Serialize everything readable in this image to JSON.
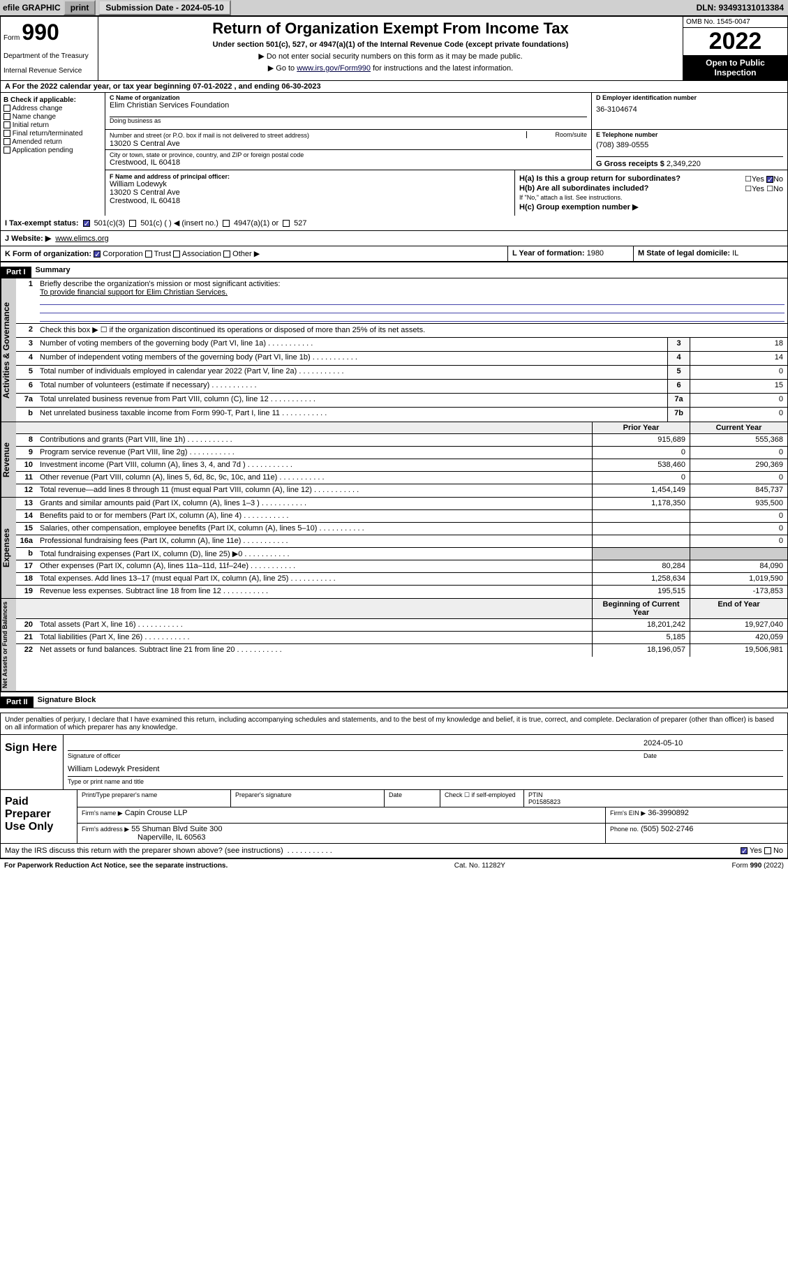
{
  "topbar": {
    "efile": "efile GRAPHIC",
    "print": "print",
    "sub_label": "Submission Date - 2024-05-10",
    "dln": "DLN: 93493131013384"
  },
  "header": {
    "form_word": "Form",
    "form_num": "990",
    "dept": "Department of the Treasury",
    "irs": "Internal Revenue Service",
    "title": "Return of Organization Exempt From Income Tax",
    "sub": "Under section 501(c), 527, or 4947(a)(1) of the Internal Revenue Code (except private foundations)",
    "note1": "▶ Do not enter social security numbers on this form as it may be made public.",
    "note2_pre": "▶ Go to ",
    "note2_link": "www.irs.gov/Form990",
    "note2_post": " for instructions and the latest information.",
    "omb": "OMB No. 1545-0047",
    "year": "2022",
    "open": "Open to Public Inspection"
  },
  "row_a": "A For the 2022 calendar year, or tax year beginning 07-01-2022   , and ending 06-30-2023",
  "b": {
    "title": "B Check if applicable:",
    "items": [
      "Address change",
      "Name change",
      "Initial return",
      "Final return/terminated",
      "Amended return",
      "Application pending"
    ]
  },
  "c": {
    "name_label": "C Name of organization",
    "name": "Elim Christian Services Foundation",
    "dba_label": "Doing business as",
    "addr_label": "Number and street (or P.O. box if mail is not delivered to street address)",
    "room_label": "Room/suite",
    "addr": "13020 S Central Ave",
    "city_label": "City or town, state or province, country, and ZIP or foreign postal code",
    "city": "Crestwood, IL  60418"
  },
  "d": {
    "label": "D Employer identification number",
    "val": "36-3104674"
  },
  "e": {
    "label": "E Telephone number",
    "val": "(708) 389-0555"
  },
  "g": {
    "label": "G Gross receipts $",
    "val": "2,349,220"
  },
  "f": {
    "label": "F Name and address of principal officer:",
    "name": "William Lodewyk",
    "addr": "13020 S Central Ave",
    "city": "Crestwood, IL  60418"
  },
  "h": {
    "a": "H(a)  Is this a group return for subordinates?",
    "a_ans": "No",
    "b": "H(b)  Are all subordinates included?",
    "b_note": "If \"No,\" attach a list. See instructions.",
    "c": "H(c)  Group exemption number ▶"
  },
  "i": {
    "label": "I  Tax-exempt status:",
    "c3": "501(c)(3)",
    "c": "501(c) (  ) ◀ (insert no.)",
    "a1": "4947(a)(1) or",
    "s527": "527"
  },
  "j": {
    "label": "J  Website: ▶",
    "val": "www.elimcs.org"
  },
  "k": {
    "label": "K Form of organization:",
    "corp": "Corporation",
    "trust": "Trust",
    "assoc": "Association",
    "other": "Other ▶",
    "l_label": "L Year of formation:",
    "l_val": "1980",
    "m_label": "M State of legal domicile:",
    "m_val": "IL"
  },
  "part1": {
    "hdr": "Part I",
    "title": "Summary"
  },
  "activities": {
    "label": "Activities & Governance",
    "l1": "Briefly describe the organization's mission or most significant activities:",
    "l1v": "To provide financial support for Elim Christian Services.",
    "l2": "Check this box ▶ ☐  if the organization discontinued its operations or disposed of more than 25% of its net assets.",
    "rows": [
      {
        "n": "3",
        "t": "Number of voting members of the governing body (Part VI, line 1a)",
        "box": "3",
        "v": "18"
      },
      {
        "n": "4",
        "t": "Number of independent voting members of the governing body (Part VI, line 1b)",
        "box": "4",
        "v": "14"
      },
      {
        "n": "5",
        "t": "Total number of individuals employed in calendar year 2022 (Part V, line 2a)",
        "box": "5",
        "v": "0"
      },
      {
        "n": "6",
        "t": "Total number of volunteers (estimate if necessary)",
        "box": "6",
        "v": "15"
      },
      {
        "n": "7a",
        "t": "Total unrelated business revenue from Part VIII, column (C), line 12",
        "box": "7a",
        "v": "0"
      },
      {
        "n": "b",
        "t": "Net unrelated business taxable income from Form 990-T, Part I, line 11",
        "box": "7b",
        "v": "0"
      }
    ]
  },
  "revenue": {
    "label": "Revenue",
    "h1": "Prior Year",
    "h2": "Current Year",
    "rows": [
      {
        "n": "8",
        "t": "Contributions and grants (Part VIII, line 1h)",
        "v1": "915,689",
        "v2": "555,368"
      },
      {
        "n": "9",
        "t": "Program service revenue (Part VIII, line 2g)",
        "v1": "0",
        "v2": "0"
      },
      {
        "n": "10",
        "t": "Investment income (Part VIII, column (A), lines 3, 4, and 7d )",
        "v1": "538,460",
        "v2": "290,369"
      },
      {
        "n": "11",
        "t": "Other revenue (Part VIII, column (A), lines 5, 6d, 8c, 9c, 10c, and 11e)",
        "v1": "0",
        "v2": "0"
      },
      {
        "n": "12",
        "t": "Total revenue—add lines 8 through 11 (must equal Part VIII, column (A), line 12)",
        "v1": "1,454,149",
        "v2": "845,737"
      }
    ]
  },
  "expenses": {
    "label": "Expenses",
    "rows": [
      {
        "n": "13",
        "t": "Grants and similar amounts paid (Part IX, column (A), lines 1–3 )",
        "v1": "1,178,350",
        "v2": "935,500"
      },
      {
        "n": "14",
        "t": "Benefits paid to or for members (Part IX, column (A), line 4)",
        "v1": "",
        "v2": "0"
      },
      {
        "n": "15",
        "t": "Salaries, other compensation, employee benefits (Part IX, column (A), lines 5–10)",
        "v1": "",
        "v2": "0"
      },
      {
        "n": "16a",
        "t": "Professional fundraising fees (Part IX, column (A), line 11e)",
        "v1": "",
        "v2": "0"
      },
      {
        "n": "b",
        "t": "Total fundraising expenses (Part IX, column (D), line 25) ▶0",
        "v1": "",
        "v2": "",
        "shade": true
      },
      {
        "n": "17",
        "t": "Other expenses (Part IX, column (A), lines 11a–11d, 11f–24e)",
        "v1": "80,284",
        "v2": "84,090"
      },
      {
        "n": "18",
        "t": "Total expenses. Add lines 13–17 (must equal Part IX, column (A), line 25)",
        "v1": "1,258,634",
        "v2": "1,019,590"
      },
      {
        "n": "19",
        "t": "Revenue less expenses. Subtract line 18 from line 12",
        "v1": "195,515",
        "v2": "-173,853"
      }
    ]
  },
  "net": {
    "label": "Net Assets or Fund Balances",
    "h1": "Beginning of Current Year",
    "h2": "End of Year",
    "rows": [
      {
        "n": "20",
        "t": "Total assets (Part X, line 16)",
        "v1": "18,201,242",
        "v2": "19,927,040"
      },
      {
        "n": "21",
        "t": "Total liabilities (Part X, line 26)",
        "v1": "5,185",
        "v2": "420,059"
      },
      {
        "n": "22",
        "t": "Net assets or fund balances. Subtract line 21 from line 20",
        "v1": "18,196,057",
        "v2": "19,506,981"
      }
    ]
  },
  "part2": {
    "hdr": "Part II",
    "title": "Signature Block"
  },
  "sig": {
    "decl": "Under penalties of perjury, I declare that I have examined this return, including accompanying schedules and statements, and to the best of my knowledge and belief, it is true, correct, and complete. Declaration of preparer (other than officer) is based on all information of which preparer has any knowledge.",
    "sign_here": "Sign Here",
    "sig_officer": "Signature of officer",
    "date_label": "Date",
    "date": "2024-05-10",
    "name": "William Lodewyk  President",
    "name_label": "Type or print name and title"
  },
  "paid": {
    "label": "Paid Preparer Use Only",
    "h_name": "Print/Type preparer's name",
    "h_sig": "Preparer's signature",
    "h_date": "Date",
    "h_check": "Check ☐ if self-employed",
    "h_ptin": "PTIN",
    "ptin": "P01585823",
    "firm_label": "Firm's name   ▶",
    "firm": "Capin Crouse LLP",
    "ein_label": "Firm's EIN ▶",
    "ein": "36-3990892",
    "addr_label": "Firm's address ▶",
    "addr1": "55 Shuman Blvd Suite 300",
    "addr2": "Naperville, IL  60563",
    "phone_label": "Phone no.",
    "phone": "(505) 502-2746"
  },
  "discuss": {
    "q": "May the IRS discuss this return with the preparer shown above? (see instructions)",
    "yes": "Yes",
    "no": "No"
  },
  "footer": {
    "left": "For Paperwork Reduction Act Notice, see the separate instructions.",
    "mid": "Cat. No. 11282Y",
    "right": "Form 990 (2022)"
  }
}
